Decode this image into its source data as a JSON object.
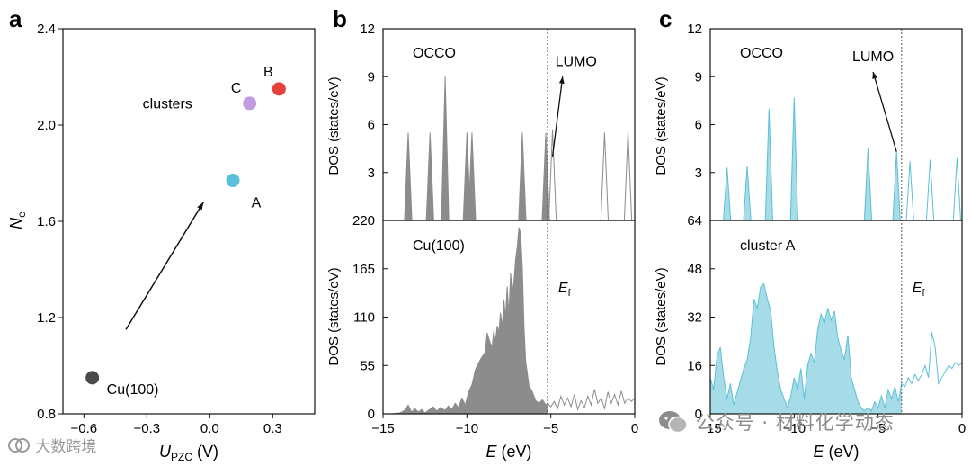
{
  "chart_data": [
    {
      "panel": "a",
      "type": "scatter",
      "xlabel": "U",
      "xlabel_sub": "PZC",
      "xlabel_unit": " (V)",
      "ylabel": "N",
      "ylabel_sub": "e",
      "xlim": [
        -0.7,
        0.5
      ],
      "ylim": [
        0.8,
        2.4
      ],
      "xticks": [
        -0.6,
        -0.3,
        0.0,
        0.3
      ],
      "xtick_labels": [
        "−0.6",
        "−0.3",
        "0.0",
        "0.3"
      ],
      "yticks": [
        0.8,
        1.2,
        1.6,
        2.0,
        2.4
      ],
      "ytick_labels": [
        "0.8",
        "1.2",
        "1.6",
        "2.0",
        "2.4"
      ],
      "points": [
        {
          "label": "Cu(100)",
          "x": -0.56,
          "y": 0.95,
          "color": "#4a4a4a"
        },
        {
          "label": "A",
          "x": 0.11,
          "y": 1.77,
          "color": "#5bc0de"
        },
        {
          "label": "C",
          "x": 0.19,
          "y": 2.09,
          "color": "#c39be0"
        },
        {
          "label": "B",
          "x": 0.33,
          "y": 2.15,
          "color": "#e8403c"
        }
      ],
      "annotations": [
        {
          "text": "clusters",
          "x": -0.32,
          "y": 2.07
        }
      ],
      "arrow": {
        "from": [
          -0.4,
          1.15
        ],
        "to": [
          -0.03,
          1.68
        ]
      }
    },
    {
      "panel": "b",
      "type": "area",
      "xlabel": "E",
      "xlabel_unit": " (eV)",
      "xlim": [
        -15,
        0
      ],
      "xticks": [
        -15,
        -10,
        -5,
        0
      ],
      "xtick_labels": [
        "−15",
        "−10",
        "−5",
        "0"
      ],
      "fermi_level": -5.2,
      "fermi_label": "E",
      "fermi_label_sub": "f",
      "color": "#8c8c8c",
      "top": {
        "name": "OCCO",
        "ylabel": "DOS (states/eV)",
        "ylim": [
          0,
          12
        ],
        "yticks": [
          3,
          6,
          9,
          12
        ],
        "ytick_labels": [
          "3",
          "6",
          "9",
          "12"
        ],
        "lumo_label": "LUMO",
        "lumo_arrow": {
          "from": [
            -4.9,
            4.0
          ],
          "to": [
            -4.3,
            9.0
          ]
        },
        "peaks": [
          {
            "e": -13.5,
            "h": 5.5,
            "occupied": true
          },
          {
            "e": -12.2,
            "h": 5.5,
            "occupied": true
          },
          {
            "e": -11.3,
            "h": 9.0,
            "occupied": true
          },
          {
            "e": -10.0,
            "h": 5.5,
            "occupied": true
          },
          {
            "e": -9.7,
            "h": 5.5,
            "occupied": true
          },
          {
            "e": -6.7,
            "h": 5.5,
            "occupied": true
          },
          {
            "e": -5.3,
            "h": 5.5,
            "occupied": true
          },
          {
            "e": -4.9,
            "h": 5.7,
            "occupied": false
          },
          {
            "e": -1.8,
            "h": 5.5,
            "occupied": false
          },
          {
            "e": -0.4,
            "h": 5.6,
            "occupied": false
          }
        ]
      },
      "bottom": {
        "name": "Cu(100)",
        "ylabel": "DOS (states/eV)",
        "ylim": [
          0,
          220
        ],
        "yticks": [
          0,
          55,
          110,
          165,
          220
        ],
        "ytick_labels": [
          "0",
          "55",
          "110",
          "165",
          "220"
        ],
        "points": [
          [
            -15.0,
            0
          ],
          [
            -14.5,
            0
          ],
          [
            -14.0,
            1
          ],
          [
            -13.7,
            4
          ],
          [
            -13.5,
            10
          ],
          [
            -13.3,
            2
          ],
          [
            -13.1,
            6
          ],
          [
            -12.9,
            2
          ],
          [
            -12.7,
            5
          ],
          [
            -12.5,
            1
          ],
          [
            -12.3,
            4
          ],
          [
            -12.0,
            8
          ],
          [
            -11.8,
            3
          ],
          [
            -11.6,
            7
          ],
          [
            -11.3,
            4
          ],
          [
            -11.1,
            9
          ],
          [
            -10.9,
            5
          ],
          [
            -10.7,
            12
          ],
          [
            -10.5,
            7
          ],
          [
            -10.3,
            18
          ],
          [
            -10.1,
            10
          ],
          [
            -9.9,
            25
          ],
          [
            -9.7,
            33
          ],
          [
            -9.5,
            50
          ],
          [
            -9.3,
            58
          ],
          [
            -9.1,
            65
          ],
          [
            -8.9,
            70
          ],
          [
            -8.8,
            92
          ],
          [
            -8.6,
            80
          ],
          [
            -8.5,
            76
          ],
          [
            -8.4,
            95
          ],
          [
            -8.3,
            82
          ],
          [
            -8.2,
            100
          ],
          [
            -8.1,
            92
          ],
          [
            -8.0,
            115
          ],
          [
            -7.9,
            98
          ],
          [
            -7.8,
            130
          ],
          [
            -7.7,
            110
          ],
          [
            -7.6,
            145
          ],
          [
            -7.5,
            112
          ],
          [
            -7.4,
            160
          ],
          [
            -7.3,
            140
          ],
          [
            -7.2,
            150
          ],
          [
            -7.1,
            175
          ],
          [
            -7.0,
            190
          ],
          [
            -6.9,
            212
          ],
          [
            -6.8,
            205
          ],
          [
            -6.7,
            168
          ],
          [
            -6.6,
            100
          ],
          [
            -6.5,
            60
          ],
          [
            -6.3,
            32
          ],
          [
            -6.1,
            25
          ],
          [
            -5.9,
            15
          ],
          [
            -5.7,
            12
          ],
          [
            -5.5,
            16
          ],
          [
            -5.3,
            10
          ],
          [
            -5.2,
            12
          ],
          [
            -5.0,
            8
          ],
          [
            -4.8,
            14
          ],
          [
            -4.6,
            6
          ],
          [
            -4.4,
            20
          ],
          [
            -4.2,
            10
          ],
          [
            -4.0,
            18
          ],
          [
            -3.8,
            8
          ],
          [
            -3.6,
            22
          ],
          [
            -3.4,
            5
          ],
          [
            -3.2,
            15
          ],
          [
            -3.0,
            7
          ],
          [
            -2.8,
            20
          ],
          [
            -2.6,
            10
          ],
          [
            -2.4,
            28
          ],
          [
            -2.2,
            12
          ],
          [
            -2.0,
            18
          ],
          [
            -1.8,
            6
          ],
          [
            -1.6,
            25
          ],
          [
            -1.4,
            12
          ],
          [
            -1.2,
            22
          ],
          [
            -1.0,
            10
          ],
          [
            -0.8,
            26
          ],
          [
            -0.6,
            12
          ],
          [
            -0.4,
            18
          ],
          [
            -0.2,
            14
          ],
          [
            0.0,
            18
          ]
        ]
      }
    },
    {
      "panel": "c",
      "type": "area",
      "xlabel": "E",
      "xlabel_unit": " (eV)",
      "xlim": [
        -15,
        0
      ],
      "xticks": [
        -15,
        -10,
        -5,
        0
      ],
      "xtick_labels": [
        "−15",
        "−10",
        "−5",
        "0"
      ],
      "fermi_level": -3.6,
      "fermi_label": "E",
      "fermi_label_sub": "f",
      "color": "#5bc0d8",
      "fill": "#a6dbe8",
      "top": {
        "name": "OCCO",
        "ylabel": "DOS (states/eV)",
        "ylim": [
          0,
          12
        ],
        "yticks": [
          3,
          6,
          9,
          12
        ],
        "ytick_labels": [
          "3",
          "6",
          "9",
          "12"
        ],
        "lumo_label": "LUMO",
        "lumo_arrow": {
          "from": [
            -3.9,
            4.3
          ],
          "to": [
            -5.3,
            9.3
          ]
        },
        "peaks": [
          {
            "e": -14.0,
            "h": 3.3,
            "occupied": true
          },
          {
            "e": -12.8,
            "h": 3.4,
            "occupied": true
          },
          {
            "e": -11.5,
            "h": 7.0,
            "occupied": true
          },
          {
            "e": -10.0,
            "h": 7.7,
            "occupied": true
          },
          {
            "e": -5.6,
            "h": 4.5,
            "occupied": true
          },
          {
            "e": -3.9,
            "h": 4.3,
            "occupied": true
          },
          {
            "e": -3.1,
            "h": 3.7,
            "occupied": false
          },
          {
            "e": -1.9,
            "h": 3.8,
            "occupied": false
          },
          {
            "e": -0.3,
            "h": 3.9,
            "occupied": false
          }
        ]
      },
      "bottom": {
        "name": "cluster A",
        "ylabel": "DOS (states/eV)",
        "ylim": [
          0,
          64
        ],
        "yticks": [
          0,
          16,
          32,
          48,
          64
        ],
        "ytick_labels": [
          "0",
          "16",
          "32",
          "48",
          "64"
        ],
        "points": [
          [
            -15.0,
            12
          ],
          [
            -14.8,
            8
          ],
          [
            -14.6,
            19
          ],
          [
            -14.4,
            22
          ],
          [
            -14.2,
            12
          ],
          [
            -14.0,
            5
          ],
          [
            -13.8,
            10
          ],
          [
            -13.6,
            3
          ],
          [
            -13.4,
            7
          ],
          [
            -13.2,
            11
          ],
          [
            -13.0,
            15
          ],
          [
            -12.8,
            18
          ],
          [
            -12.6,
            25
          ],
          [
            -12.4,
            38
          ],
          [
            -12.2,
            35
          ],
          [
            -12.0,
            42
          ],
          [
            -11.8,
            43
          ],
          [
            -11.6,
            38
          ],
          [
            -11.4,
            34
          ],
          [
            -11.2,
            22
          ],
          [
            -11.0,
            14
          ],
          [
            -10.8,
            8
          ],
          [
            -10.6,
            5
          ],
          [
            -10.4,
            2
          ],
          [
            -10.2,
            6
          ],
          [
            -10.0,
            12
          ],
          [
            -9.8,
            8
          ],
          [
            -9.6,
            15
          ],
          [
            -9.4,
            5
          ],
          [
            -9.2,
            16
          ],
          [
            -9.0,
            20
          ],
          [
            -8.8,
            17
          ],
          [
            -8.6,
            28
          ],
          [
            -8.4,
            33
          ],
          [
            -8.2,
            30
          ],
          [
            -8.0,
            35
          ],
          [
            -7.8,
            31
          ],
          [
            -7.6,
            34
          ],
          [
            -7.4,
            25
          ],
          [
            -7.2,
            21
          ],
          [
            -7.0,
            18
          ],
          [
            -6.8,
            26
          ],
          [
            -6.6,
            12
          ],
          [
            -6.4,
            8
          ],
          [
            -6.2,
            4
          ],
          [
            -6.0,
            2
          ],
          [
            -5.8,
            1
          ],
          [
            -5.6,
            2
          ],
          [
            -5.4,
            1
          ],
          [
            -5.2,
            4
          ],
          [
            -5.0,
            2
          ],
          [
            -4.8,
            6
          ],
          [
            -4.6,
            2
          ],
          [
            -4.4,
            8
          ],
          [
            -4.2,
            5
          ],
          [
            -4.0,
            9
          ],
          [
            -3.8,
            4
          ],
          [
            -3.6,
            10
          ],
          [
            -3.4,
            9
          ],
          [
            -3.2,
            12
          ],
          [
            -3.0,
            10
          ],
          [
            -2.8,
            13
          ],
          [
            -2.6,
            11
          ],
          [
            -2.4,
            13
          ],
          [
            -2.2,
            16
          ],
          [
            -2.0,
            12
          ],
          [
            -1.8,
            27
          ],
          [
            -1.6,
            22
          ],
          [
            -1.4,
            10
          ],
          [
            -1.2,
            12
          ],
          [
            -1.0,
            14
          ],
          [
            -0.8,
            16
          ],
          [
            -0.6,
            15
          ],
          [
            -0.4,
            17
          ],
          [
            -0.2,
            16
          ],
          [
            0.0,
            17
          ]
        ]
      }
    }
  ],
  "panel_labels": {
    "a": "a",
    "b": "b",
    "c": "c"
  },
  "watermarks": {
    "left": "大数跨境",
    "right": "公众号 · 材料化学动态"
  }
}
